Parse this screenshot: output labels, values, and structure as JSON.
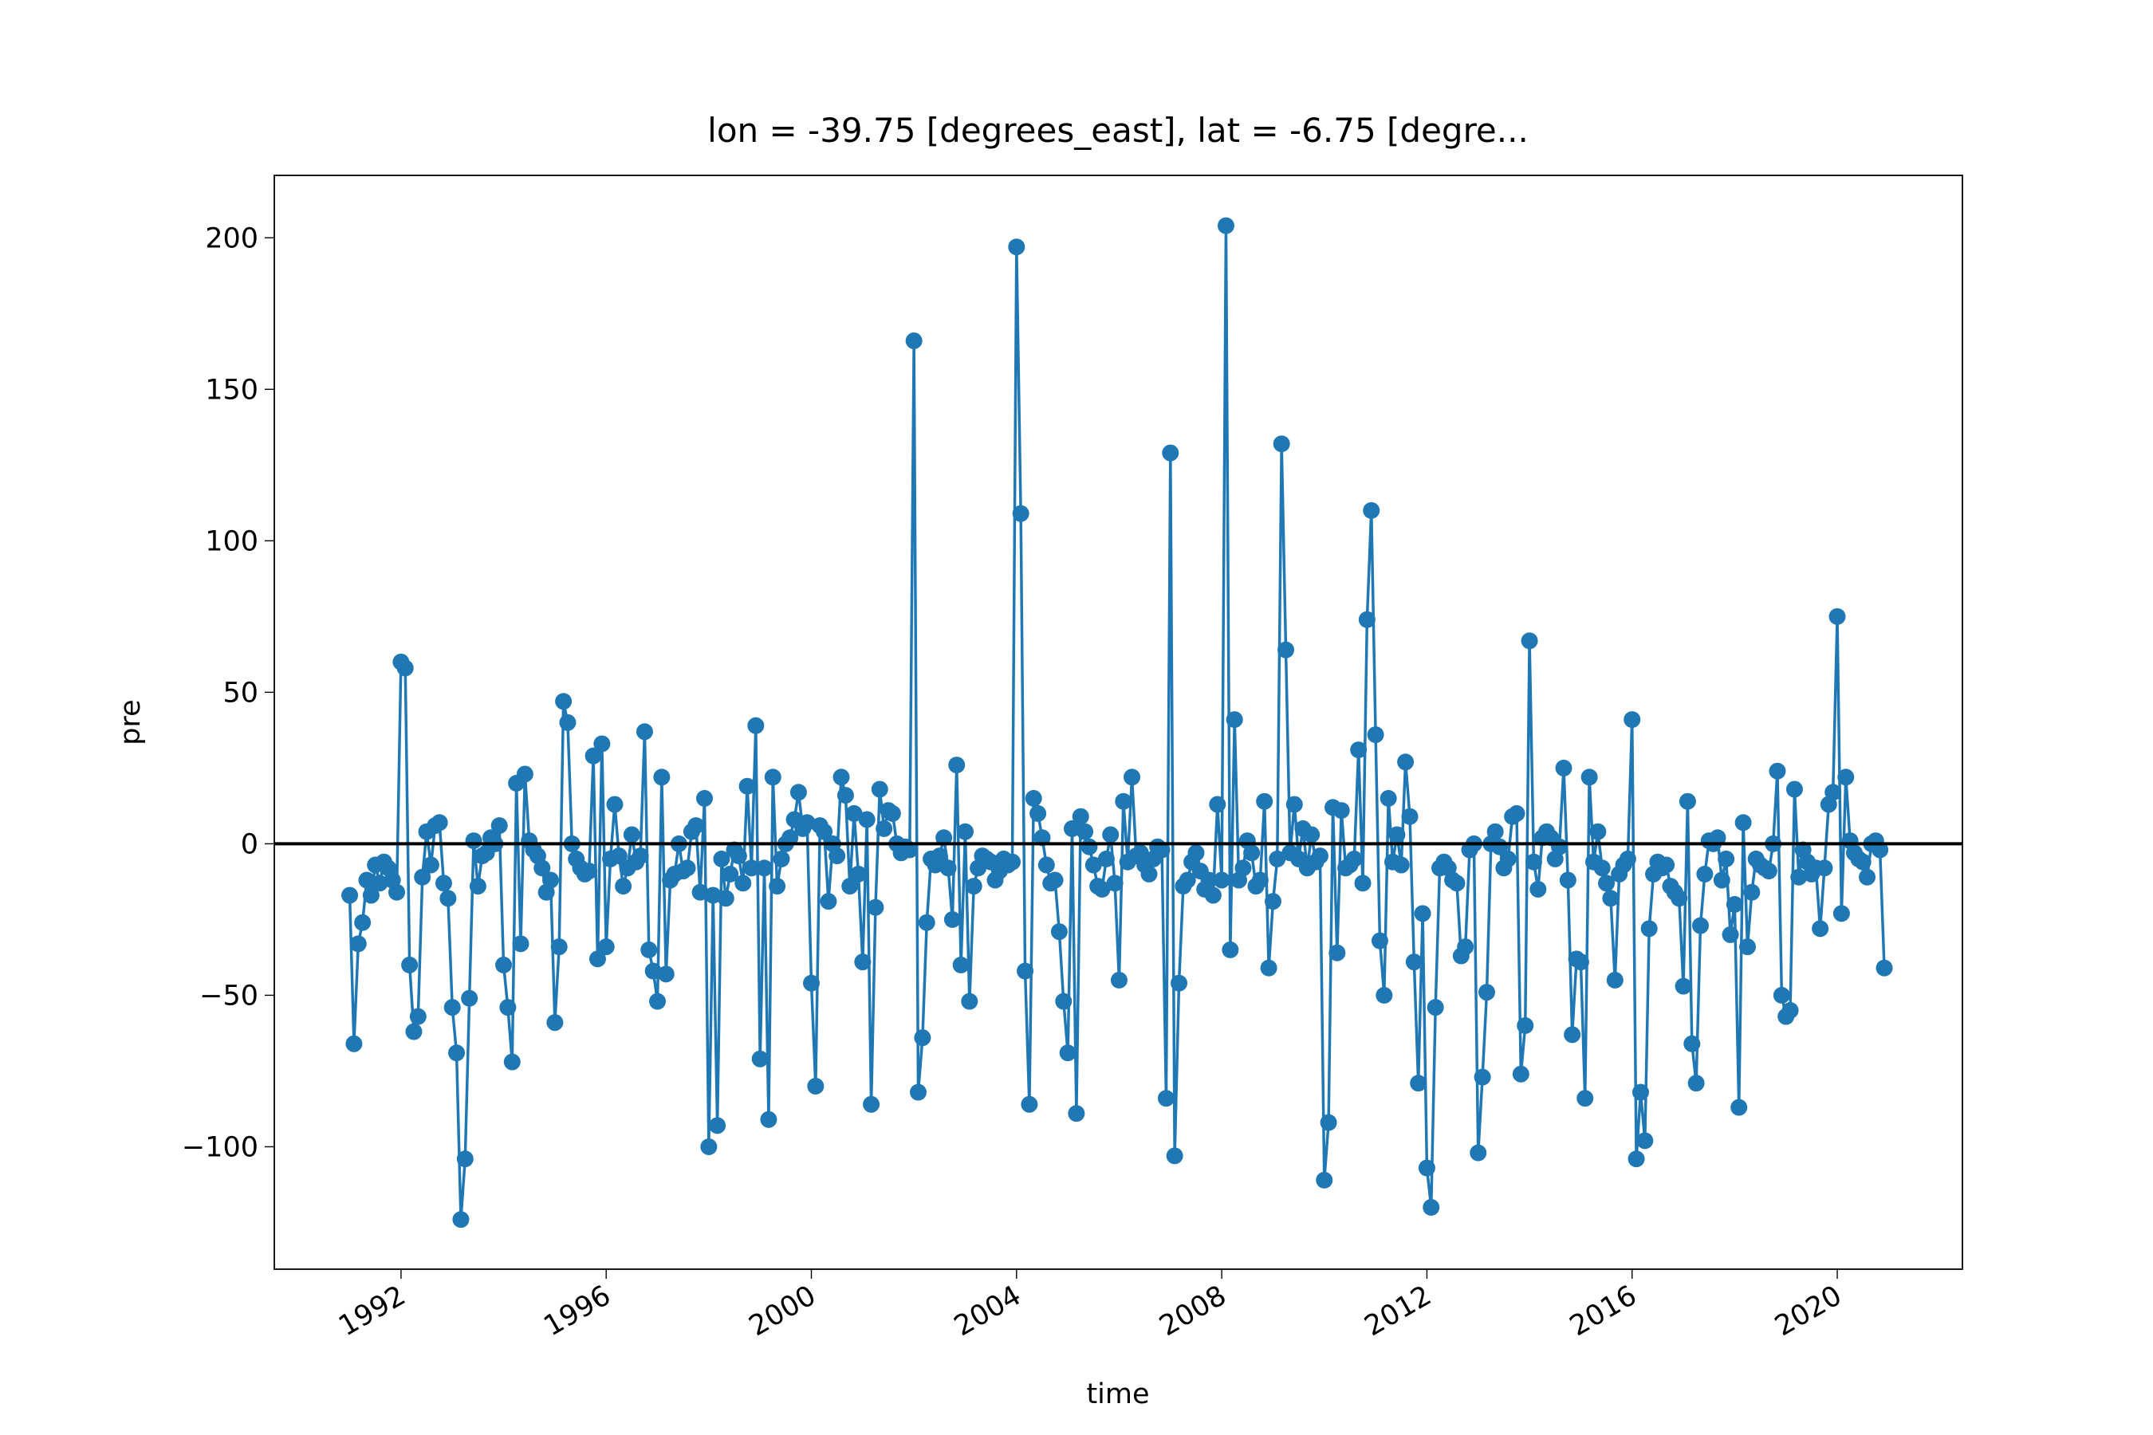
{
  "chart_data": {
    "type": "line",
    "title": "lon = -39.75 [degrees_east], lat = -6.75 [degre...",
    "xlabel": "time",
    "ylabel": "pre",
    "xlim": [
      1989.53,
      2022.44
    ],
    "ylim": [
      -140.4,
      220.6
    ],
    "xticks": [
      1992,
      1996,
      2000,
      2004,
      2008,
      2012,
      2016,
      2020
    ],
    "yticks": [
      {
        "value": -100,
        "label": "−100"
      },
      {
        "value": -50,
        "label": "−50"
      },
      0,
      50,
      100,
      150,
      200
    ],
    "reference_line": 0,
    "reference_color": "#000000",
    "marker": "o",
    "grid": false,
    "series": [
      {
        "name": "pre",
        "color": "#1f77b4",
        "x": [
          1991.0,
          1991.083,
          1991.167,
          1991.25,
          1991.333,
          1991.417,
          1991.5,
          1991.583,
          1991.667,
          1991.75,
          1991.833,
          1991.917,
          1992.0,
          1992.083,
          1992.167,
          1992.25,
          1992.333,
          1992.417,
          1992.5,
          1992.583,
          1992.667,
          1992.75,
          1992.833,
          1992.917,
          1993.0,
          1993.083,
          1993.167,
          1993.25,
          1993.333,
          1993.417,
          1993.5,
          1993.583,
          1993.667,
          1993.75,
          1993.833,
          1993.917,
          1994.0,
          1994.083,
          1994.167,
          1994.25,
          1994.333,
          1994.417,
          1994.5,
          1994.583,
          1994.667,
          1994.75,
          1994.833,
          1994.917,
          1995.0,
          1995.083,
          1995.167,
          1995.25,
          1995.333,
          1995.417,
          1995.5,
          1995.583,
          1995.667,
          1995.75,
          1995.833,
          1995.917,
          1996.0,
          1996.083,
          1996.167,
          1996.25,
          1996.333,
          1996.417,
          1996.5,
          1996.583,
          1996.667,
          1996.75,
          1996.833,
          1996.917,
          1997.0,
          1997.083,
          1997.167,
          1997.25,
          1997.333,
          1997.417,
          1997.5,
          1997.583,
          1997.667,
          1997.75,
          1997.833,
          1997.917,
          1998.0,
          1998.083,
          1998.167,
          1998.25,
          1998.333,
          1998.417,
          1998.5,
          1998.583,
          1998.667,
          1998.75,
          1998.833,
          1998.917,
          1999.0,
          1999.083,
          1999.167,
          1999.25,
          1999.333,
          1999.417,
          1999.5,
          1999.583,
          1999.667,
          1999.75,
          1999.833,
          1999.917,
          2000.0,
          2000.083,
          2000.167,
          2000.25,
          2000.333,
          2000.417,
          2000.5,
          2000.583,
          2000.667,
          2000.75,
          2000.833,
          2000.917,
          2001.0,
          2001.083,
          2001.167,
          2001.25,
          2001.333,
          2001.417,
          2001.5,
          2001.583,
          2001.667,
          2001.75,
          2001.833,
          2001.917,
          2002.0,
          2002.083,
          2002.167,
          2002.25,
          2002.333,
          2002.417,
          2002.5,
          2002.583,
          2002.667,
          2002.75,
          2002.833,
          2002.917,
          2003.0,
          2003.083,
          2003.167,
          2003.25,
          2003.333,
          2003.417,
          2003.5,
          2003.583,
          2003.667,
          2003.75,
          2003.833,
          2003.917,
          2004.0,
          2004.083,
          2004.167,
          2004.25,
          2004.333,
          2004.417,
          2004.5,
          2004.583,
          2004.667,
          2004.75,
          2004.833,
          2004.917,
          2005.0,
          2005.083,
          2005.167,
          2005.25,
          2005.333,
          2005.417,
          2005.5,
          2005.583,
          2005.667,
          2005.75,
          2005.833,
          2005.917,
          2006.0,
          2006.083,
          2006.167,
          2006.25,
          2006.333,
          2006.417,
          2006.5,
          2006.583,
          2006.667,
          2006.75,
          2006.833,
          2006.917,
          2007.0,
          2007.083,
          2007.167,
          2007.25,
          2007.333,
          2007.417,
          2007.5,
          2007.583,
          2007.667,
          2007.75,
          2007.833,
          2007.917,
          2008.0,
          2008.083,
          2008.167,
          2008.25,
          2008.333,
          2008.417,
          2008.5,
          2008.583,
          2008.667,
          2008.75,
          2008.833,
          2008.917,
          2009.0,
          2009.083,
          2009.167,
          2009.25,
          2009.333,
          2009.417,
          2009.5,
          2009.583,
          2009.667,
          2009.75,
          2009.833,
          2009.917,
          2010.0,
          2010.083,
          2010.167,
          2010.25,
          2010.333,
          2010.417,
          2010.5,
          2010.583,
          2010.667,
          2010.75,
          2010.833,
          2010.917,
          2011.0,
          2011.083,
          2011.167,
          2011.25,
          2011.333,
          2011.417,
          2011.5,
          2011.583,
          2011.667,
          2011.75,
          2011.833,
          2011.917,
          2012.0,
          2012.083,
          2012.167,
          2012.25,
          2012.333,
          2012.417,
          2012.5,
          2012.583,
          2012.667,
          2012.75,
          2012.833,
          2012.917,
          2013.0,
          2013.083,
          2013.167,
          2013.25,
          2013.333,
          2013.417,
          2013.5,
          2013.583,
          2013.667,
          2013.75,
          2013.833,
          2013.917,
          2014.0,
          2014.083,
          2014.167,
          2014.25,
          2014.333,
          2014.417,
          2014.5,
          2014.583,
          2014.667,
          2014.75,
          2014.833,
          2014.917,
          2015.0,
          2015.083,
          2015.167,
          2015.25,
          2015.333,
          2015.417,
          2015.5,
          2015.583,
          2015.667,
          2015.75,
          2015.833,
          2015.917,
          2016.0,
          2016.083,
          2016.167,
          2016.25,
          2016.333,
          2016.417,
          2016.5,
          2016.583,
          2016.667,
          2016.75,
          2016.833,
          2016.917,
          2017.0,
          2017.083,
          2017.167,
          2017.25,
          2017.333,
          2017.417,
          2017.5,
          2017.583,
          2017.667,
          2017.75,
          2017.833,
          2017.917,
          2018.0,
          2018.083,
          2018.167,
          2018.25,
          2018.333,
          2018.417,
          2018.5,
          2018.583,
          2018.667,
          2018.75,
          2018.833,
          2018.917,
          2019.0,
          2019.083,
          2019.167,
          2019.25,
          2019.333,
          2019.417,
          2019.5,
          2019.583,
          2019.667,
          2019.75,
          2019.833,
          2019.917,
          2020.0,
          2020.083,
          2020.167,
          2020.25,
          2020.333,
          2020.417,
          2020.5,
          2020.583,
          2020.667,
          2020.75,
          2020.833,
          2020.917
        ],
        "values": [
          -17,
          -66,
          -33,
          -26,
          -12,
          -17,
          -7,
          -13,
          -6,
          -8,
          -12,
          -16,
          60,
          58,
          -40,
          -62,
          -57,
          -11,
          4,
          -7,
          6,
          7,
          -13,
          -18,
          -54,
          -69,
          -124,
          -104,
          -51,
          1,
          -14,
          -4,
          -3,
          2,
          0,
          6,
          -40,
          -54,
          -72,
          20,
          -33,
          23,
          1,
          -2,
          -4,
          -8,
          -16,
          -12,
          -59,
          -34,
          47,
          40,
          0,
          -5,
          -8,
          -10,
          -9,
          29,
          -38,
          33,
          -34,
          -5,
          13,
          -4,
          -14,
          -8,
          3,
          -6,
          -4,
          37,
          -35,
          -42,
          -52,
          22,
          -43,
          -12,
          -10,
          0,
          -9,
          -8,
          4,
          6,
          -16,
          15,
          -100,
          -17,
          -93,
          -5,
          -18,
          -10,
          -2,
          -4,
          -13,
          19,
          -8,
          39,
          -71,
          -8,
          -91,
          22,
          -14,
          -5,
          0,
          2,
          8,
          17,
          5,
          7,
          -46,
          -80,
          6,
          4,
          -19,
          0,
          -4,
          22,
          16,
          -14,
          10,
          -10,
          -39,
          8,
          -86,
          -21,
          18,
          5,
          11,
          10,
          0,
          -3,
          -1,
          -2,
          166,
          -82,
          -64,
          -26,
          -5,
          -7,
          -4,
          2,
          -8,
          -25,
          26,
          -40,
          4,
          -52,
          -14,
          -8,
          -4,
          -5,
          -6,
          -12,
          -9,
          -5,
          -7,
          -6,
          197,
          109,
          -42,
          -86,
          15,
          10,
          2,
          -7,
          -13,
          -12,
          -29,
          -52,
          -69,
          5,
          -89,
          9,
          4,
          -1,
          -7,
          -14,
          -15,
          -5,
          3,
          -13,
          -45,
          14,
          -6,
          22,
          -4,
          -3,
          -7,
          -10,
          -5,
          -1,
          -2,
          -84,
          129,
          -103,
          -46,
          -14,
          -12,
          -6,
          -3,
          -9,
          -15,
          -12,
          -17,
          13,
          -12,
          204,
          -35,
          41,
          -12,
          -8,
          1,
          -3,
          -14,
          -12,
          14,
          -41,
          -19,
          -5,
          132,
          64,
          -3,
          13,
          -5,
          5,
          -8,
          3,
          -6,
          -4,
          -111,
          -92,
          12,
          -36,
          11,
          -8,
          -7,
          -5,
          31,
          -13,
          74,
          110,
          36,
          -32,
          -50,
          15,
          -6,
          3,
          -7,
          27,
          9,
          -39,
          -79,
          -23,
          -107,
          -120,
          -54,
          -8,
          -6,
          -8,
          -12,
          -13,
          -37,
          -34,
          -2,
          0,
          -102,
          -77,
          -49,
          0,
          4,
          -1,
          -8,
          -5,
          9,
          10,
          -76,
          -60,
          67,
          -6,
          -15,
          2,
          4,
          2,
          -5,
          -1,
          25,
          -12,
          -63,
          -38,
          -39,
          -84,
          22,
          -6,
          4,
          -8,
          -13,
          -18,
          -45,
          -10,
          -7,
          -5,
          41,
          -104,
          -82,
          -98,
          -28,
          -10,
          -6,
          -8,
          -7,
          -14,
          -16,
          -18,
          -47,
          14,
          -66,
          -79,
          -27,
          -10,
          1,
          0,
          2,
          -12,
          -5,
          -30,
          -20,
          -87,
          7,
          -34,
          -16,
          -5,
          -7,
          -8,
          -9,
          0,
          24,
          -50,
          -57,
          -55,
          18,
          -11,
          -2,
          -6,
          -10,
          -8,
          -28,
          -8,
          13,
          17,
          75,
          -23,
          22,
          1,
          -3,
          -5,
          -6,
          -11,
          0,
          1,
          -2,
          -41
        ]
      }
    ]
  }
}
